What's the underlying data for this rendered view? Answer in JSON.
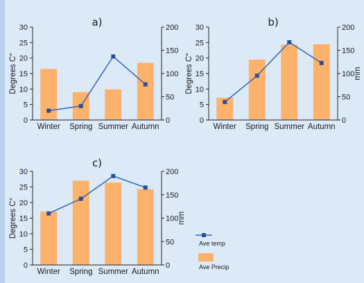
{
  "colors": {
    "background": "#dceaf8",
    "bar": "#fdb26b",
    "line": "#3d6bb3",
    "marker": "#2b4f99",
    "axis": "#222222"
  },
  "legend": {
    "temp_label": "Ave temp",
    "precip_label": "Ave Precip"
  },
  "chart_data": [
    {
      "type": "bar",
      "title": "a)",
      "categories": [
        "Winter",
        "Spring",
        "Summer",
        "Autumn"
      ],
      "ylabel": "Degrees C°",
      "y2label": "",
      "ylim": [
        0,
        30
      ],
      "y2lim": [
        0,
        200
      ],
      "yticks": [
        0,
        5,
        10,
        15,
        20,
        25,
        30
      ],
      "y2ticks": [
        0,
        50,
        100,
        150,
        200
      ],
      "series": [
        {
          "name": "Ave Precip",
          "kind": "bar",
          "axis": "right",
          "values": [
            110,
            60,
            66,
            123
          ]
        },
        {
          "name": "Ave temp",
          "kind": "line",
          "axis": "left",
          "values": [
            3,
            4.5,
            20.5,
            11.5
          ]
        }
      ]
    },
    {
      "type": "bar",
      "title": "b)",
      "categories": [
        "Winter",
        "Spring",
        "Summer",
        "Autumn"
      ],
      "ylabel": "Degrees C°",
      "y2label": "mm",
      "ylim": [
        0,
        30
      ],
      "y2lim": [
        0,
        200
      ],
      "yticks": [
        0,
        5,
        10,
        15,
        20,
        25,
        30
      ],
      "y2ticks": [
        0,
        50,
        100,
        150,
        200
      ],
      "series": [
        {
          "name": "Ave Precip",
          "kind": "bar",
          "axis": "right",
          "values": [
            48,
            130,
            162,
            163
          ]
        },
        {
          "name": "Ave temp",
          "kind": "line",
          "axis": "left",
          "values": [
            5.8,
            14.3,
            25.1,
            18.4
          ]
        }
      ]
    },
    {
      "type": "bar",
      "title": "c)",
      "categories": [
        "Winter",
        "Spring",
        "Summer",
        "Autumn"
      ],
      "ylabel": "Degrees C°",
      "y2label": "mm",
      "ylim": [
        0,
        30
      ],
      "y2lim": [
        0,
        200
      ],
      "yticks": [
        0,
        5,
        10,
        15,
        20,
        25,
        30
      ],
      "y2ticks": [
        0,
        50,
        100,
        150,
        200
      ],
      "series": [
        {
          "name": "Ave Precip",
          "kind": "bar",
          "axis": "right",
          "values": [
            114,
            180,
            176,
            162
          ]
        },
        {
          "name": "Ave temp",
          "kind": "line",
          "axis": "left",
          "values": [
            16.5,
            21.2,
            28.5,
            24.8
          ]
        }
      ]
    }
  ]
}
